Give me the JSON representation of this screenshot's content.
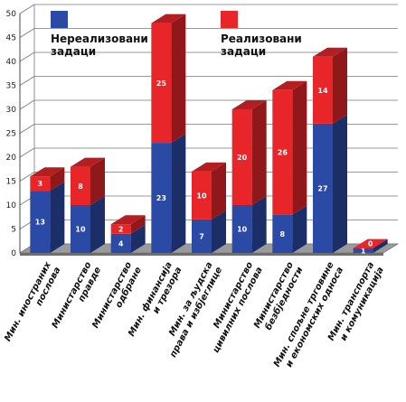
{
  "chart_data": {
    "type": "bar",
    "stacked": true,
    "categories": [
      [
        "Мин. иностраних",
        "послова"
      ],
      [
        "Министарство",
        "правде"
      ],
      [
        "Министарство",
        "одбране"
      ],
      [
        "Мин. финансија",
        "и трезора"
      ],
      [
        "Мин. за људска",
        "права и избјеглице"
      ],
      [
        "Министарство",
        "цивилних послова"
      ],
      [
        "Министарство",
        "безбједности"
      ],
      [
        "Мин. спољне трговине",
        "и економских односа"
      ],
      [
        "Мин. транспорта",
        "и комуникација"
      ]
    ],
    "series": [
      {
        "name": "Нереализовани задаци",
        "color": "#2b4aa6",
        "values": [
          13,
          10,
          4,
          23,
          7,
          10,
          8,
          27,
          1
        ]
      },
      {
        "name": "Реализовани задаци",
        "color": "#e8262a",
        "values": [
          3,
          8,
          2,
          25,
          10,
          20,
          26,
          14,
          0
        ]
      }
    ],
    "ylim": [
      0,
      50
    ],
    "yticks": [
      "0",
      "5",
      "10",
      "15",
      "20",
      "25",
      "30",
      "35",
      "40",
      "45",
      "50"
    ],
    "grid": true,
    "style": "3d",
    "legend_position": "top",
    "legend": [
      [
        "Нереализовани",
        "задаци"
      ],
      [
        "Реализовани",
        "задаци"
      ]
    ]
  }
}
